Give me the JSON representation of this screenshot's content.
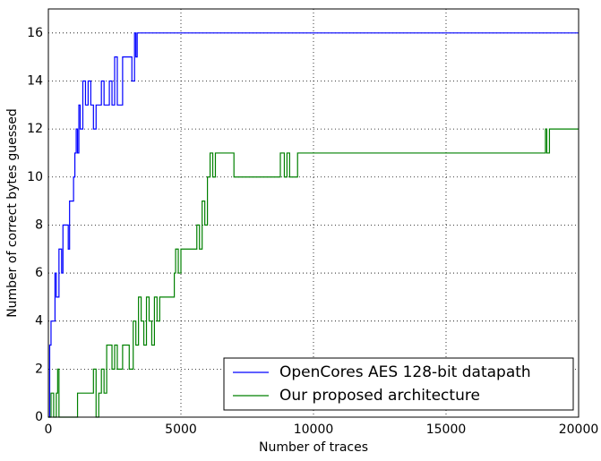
{
  "chart_data": {
    "type": "line",
    "step": "post",
    "xlabel": "Number of traces",
    "ylabel": "Number of correct bytes guessed",
    "xlim": [
      0,
      20000
    ],
    "ylim": [
      0,
      17
    ],
    "xticks": [
      0,
      5000,
      10000,
      15000,
      20000
    ],
    "yticks": [
      0,
      2,
      4,
      6,
      8,
      10,
      12,
      14,
      16
    ],
    "grid": true,
    "legend": "lower right",
    "series": [
      {
        "name": "OpenCores AES 128-bit datapath",
        "color": "#0000ff",
        "x": [
          0,
          50,
          100,
          200,
          250,
          300,
          400,
          500,
          550,
          700,
          750,
          800,
          900,
          950,
          1000,
          1050,
          1100,
          1150,
          1200,
          1300,
          1400,
          1500,
          1600,
          1700,
          1800,
          1900,
          2000,
          2100,
          2300,
          2400,
          2500,
          2600,
          2800,
          3100,
          3150,
          3250,
          3300,
          3350,
          20000
        ],
        "values": [
          0,
          3,
          4,
          4,
          6,
          5,
          7,
          6,
          8,
          8,
          7,
          9,
          9,
          10,
          11,
          12,
          11,
          13,
          12,
          14,
          13,
          14,
          13,
          12,
          13,
          13,
          14,
          13,
          14,
          13,
          15,
          13,
          15,
          15,
          14,
          16,
          15,
          16,
          16
        ]
      },
      {
        "name": "Our proposed architecture",
        "color": "#008000",
        "x": [
          0,
          100,
          200,
          300,
          350,
          400,
          500,
          1100,
          1700,
          1800,
          1900,
          2000,
          2100,
          2200,
          2400,
          2500,
          2600,
          2800,
          3000,
          3050,
          3200,
          3300,
          3400,
          3500,
          3600,
          3700,
          3800,
          3900,
          4000,
          4100,
          4200,
          4700,
          4750,
          4800,
          4900,
          5000,
          5500,
          5600,
          5700,
          5800,
          5900,
          6000,
          6100,
          6200,
          6300,
          7000,
          8700,
          8750,
          8900,
          9000,
          9100,
          9300,
          9400,
          18700,
          18750,
          18800,
          18900,
          20000
        ],
        "values": [
          0,
          1,
          0,
          1,
          2,
          0,
          0,
          1,
          2,
          0,
          1,
          2,
          1,
          3,
          2,
          3,
          2,
          3,
          3,
          2,
          4,
          3,
          5,
          4,
          3,
          5,
          4,
          3,
          5,
          4,
          5,
          5,
          6,
          7,
          6,
          7,
          7,
          8,
          7,
          9,
          8,
          10,
          11,
          10,
          11,
          10,
          10,
          11,
          10,
          11,
          10,
          10,
          11,
          11,
          12,
          11,
          12,
          12
        ]
      }
    ]
  }
}
